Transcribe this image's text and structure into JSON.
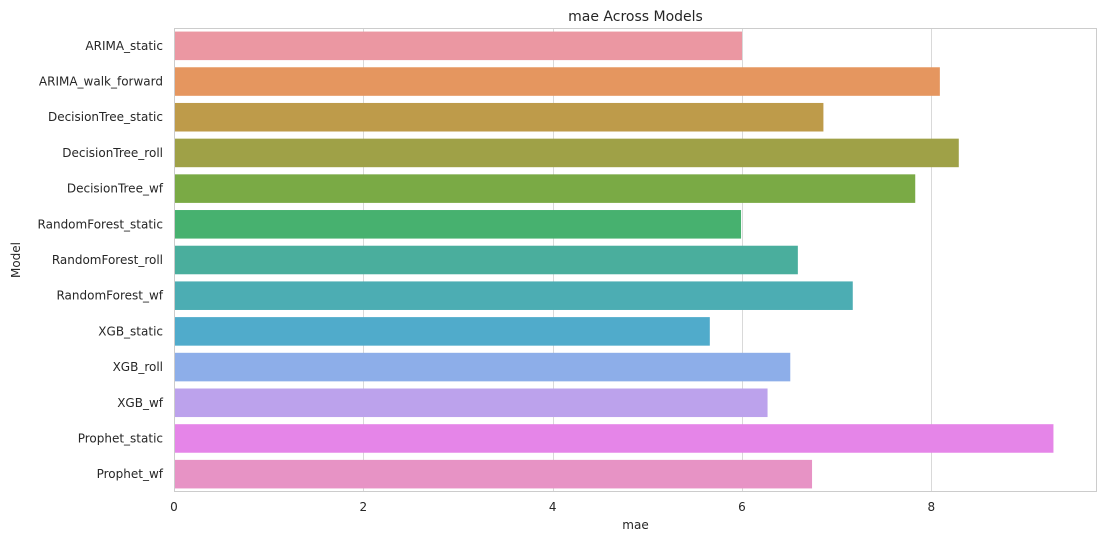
{
  "chart_data": {
    "type": "bar",
    "orientation": "horizontal",
    "title": "mae Across Models",
    "xlabel": "mae",
    "ylabel": "Model",
    "xlim": [
      0,
      9.75
    ],
    "xticks": [
      0,
      2,
      4,
      6,
      8
    ],
    "grid": true,
    "categories": [
      "ARIMA_static",
      "ARIMA_walk_forward",
      "DecisionTree_static",
      "DecisionTree_roll",
      "DecisionTree_wf",
      "RandomForest_static",
      "RandomForest_roll",
      "RandomForest_wf",
      "XGB_static",
      "XGB_roll",
      "XGB_wf",
      "Prophet_static",
      "Prophet_wf"
    ],
    "values": [
      6.0,
      8.09,
      6.86,
      8.29,
      7.83,
      5.99,
      6.59,
      7.17,
      5.66,
      6.51,
      6.27,
      9.29,
      6.74
    ],
    "colors": [
      "#EB97A2",
      "#E5965F",
      "#BE9B4A",
      "#9FA147",
      "#7AAA45",
      "#47B16F",
      "#4AAE9D",
      "#4CADB3",
      "#50ABCB",
      "#8DAEE9",
      "#BCA2EC",
      "#E585E8",
      "#E793C5"
    ]
  }
}
